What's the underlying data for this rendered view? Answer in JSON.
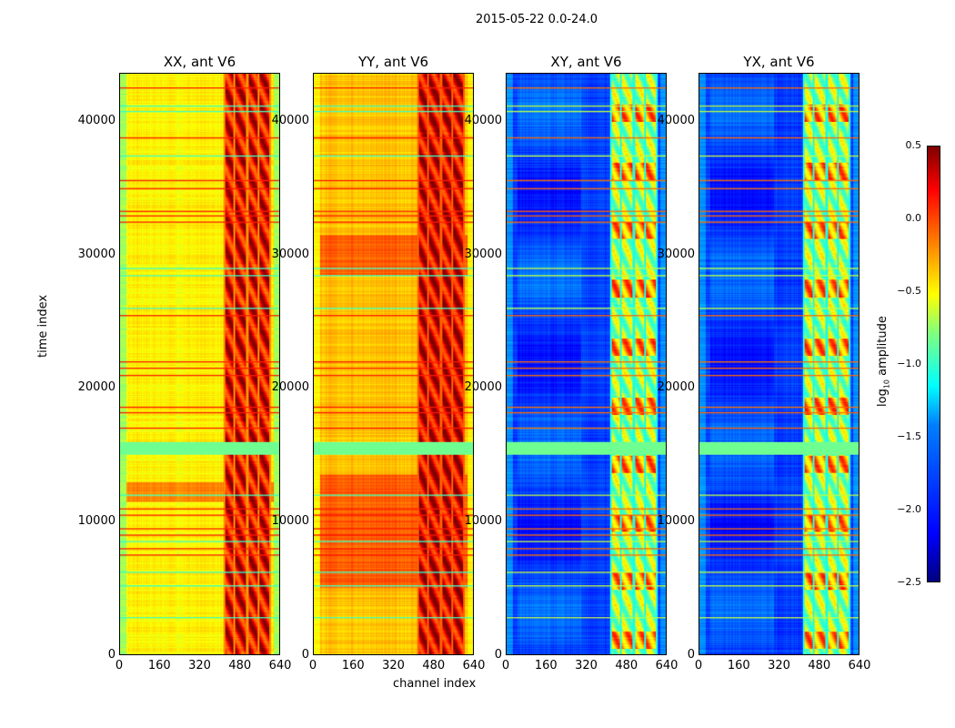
{
  "chart_data": {
    "type": "heatmap",
    "title": "2015-05-22 0.0-24.0",
    "xlabel": "channel index",
    "ylabel": "time index",
    "xlim": [
      0,
      640
    ],
    "ylim": [
      0,
      43600
    ],
    "xticks": [
      "0",
      "160",
      "320",
      "480",
      "640"
    ],
    "yticks": [
      "0",
      "10000",
      "20000",
      "30000",
      "40000"
    ],
    "colormap": "jet",
    "colorbar": {
      "label": "log10 amplitude",
      "label_main": "log",
      "label_sub": "10",
      "label_rest": " amplitude",
      "range": [
        -2.5,
        0.5
      ],
      "ticks": [
        "0.5",
        "0.0",
        "−0.5",
        "−1.0",
        "−1.5",
        "−2.0",
        "−2.5"
      ]
    },
    "panels": [
      {
        "title": "XX, ant V6",
        "base": -0.6,
        "edge": -0.9,
        "band": 0.15,
        "orange_rows": [
          [
            11500,
            13000
          ]
        ]
      },
      {
        "title": "YY, ant V6",
        "base": -0.45,
        "edge": -0.6,
        "band": 0.2,
        "orange_rows": [
          [
            5000,
            13500
          ],
          [
            28500,
            31500
          ]
        ]
      },
      {
        "title": "XY, ant V6",
        "base": -1.95,
        "edge": -1.7,
        "band": -0.9,
        "orange_rows": []
      },
      {
        "title": "YX, ant V6",
        "base": -1.95,
        "edge": -1.7,
        "band": -0.9,
        "orange_rows": []
      }
    ],
    "band_channels": [
      [
        420,
        455
      ],
      [
        460,
        505
      ],
      [
        515,
        550
      ],
      [
        560,
        600
      ]
    ],
    "flagged_rows_high": [
      7500,
      8000,
      9000,
      9500,
      10500,
      11000,
      17000,
      18200,
      18600,
      21000,
      21500,
      22000,
      25500,
      32500,
      33000,
      33300,
      35000,
      35600,
      38800,
      42600
    ],
    "flagged_rows_mid": [
      2800,
      5200,
      6200,
      8500,
      12000,
      26000,
      28500,
      29000,
      37500,
      40800,
      41200
    ],
    "flagged_block": [
      15000,
      16000
    ]
  }
}
